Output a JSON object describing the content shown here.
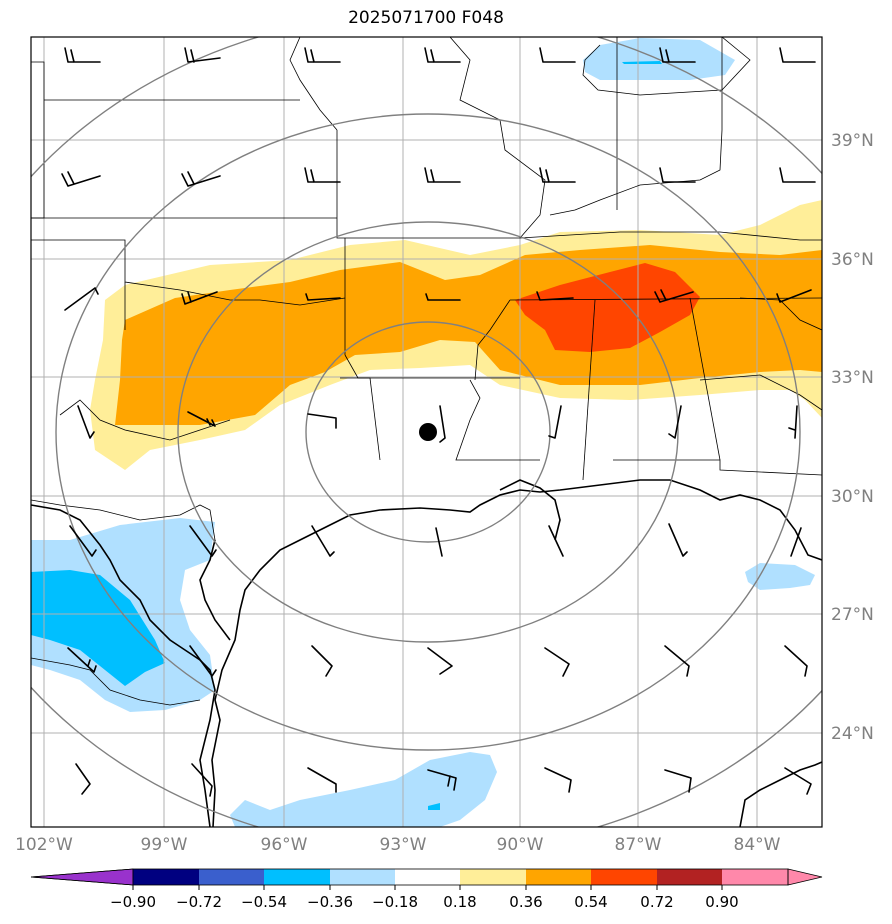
{
  "title": "2025071700 F048",
  "colors": {
    "bins": [
      "#9932cc",
      "#000080",
      "#3a5fcd",
      "#00bfff",
      "#b0e0ff",
      "#ffffff",
      "#ffee99",
      "#ffa500",
      "#ff4500",
      "#b22222",
      "#ff88aa"
    ],
    "extend_low": "#9932cc",
    "extend_high": "#ff88aa",
    "ring": "#808080",
    "grid": "#b0b0b0",
    "label": "#808080"
  },
  "map": {
    "lat_labels": [
      "39°N",
      "36°N",
      "33°N",
      "30°N",
      "27°N",
      "24°N"
    ],
    "lon_labels": [
      "102°W",
      "99°W",
      "96°W",
      "93°W",
      "90°W",
      "87°W",
      "84°W"
    ],
    "center_marker": "black-dot"
  },
  "colorbar": {
    "ticks": [
      "−0.90",
      "−0.72",
      "−0.54",
      "−0.36",
      "−0.18",
      "0.18",
      "0.36",
      "0.54",
      "0.72",
      "0.90"
    ]
  }
}
